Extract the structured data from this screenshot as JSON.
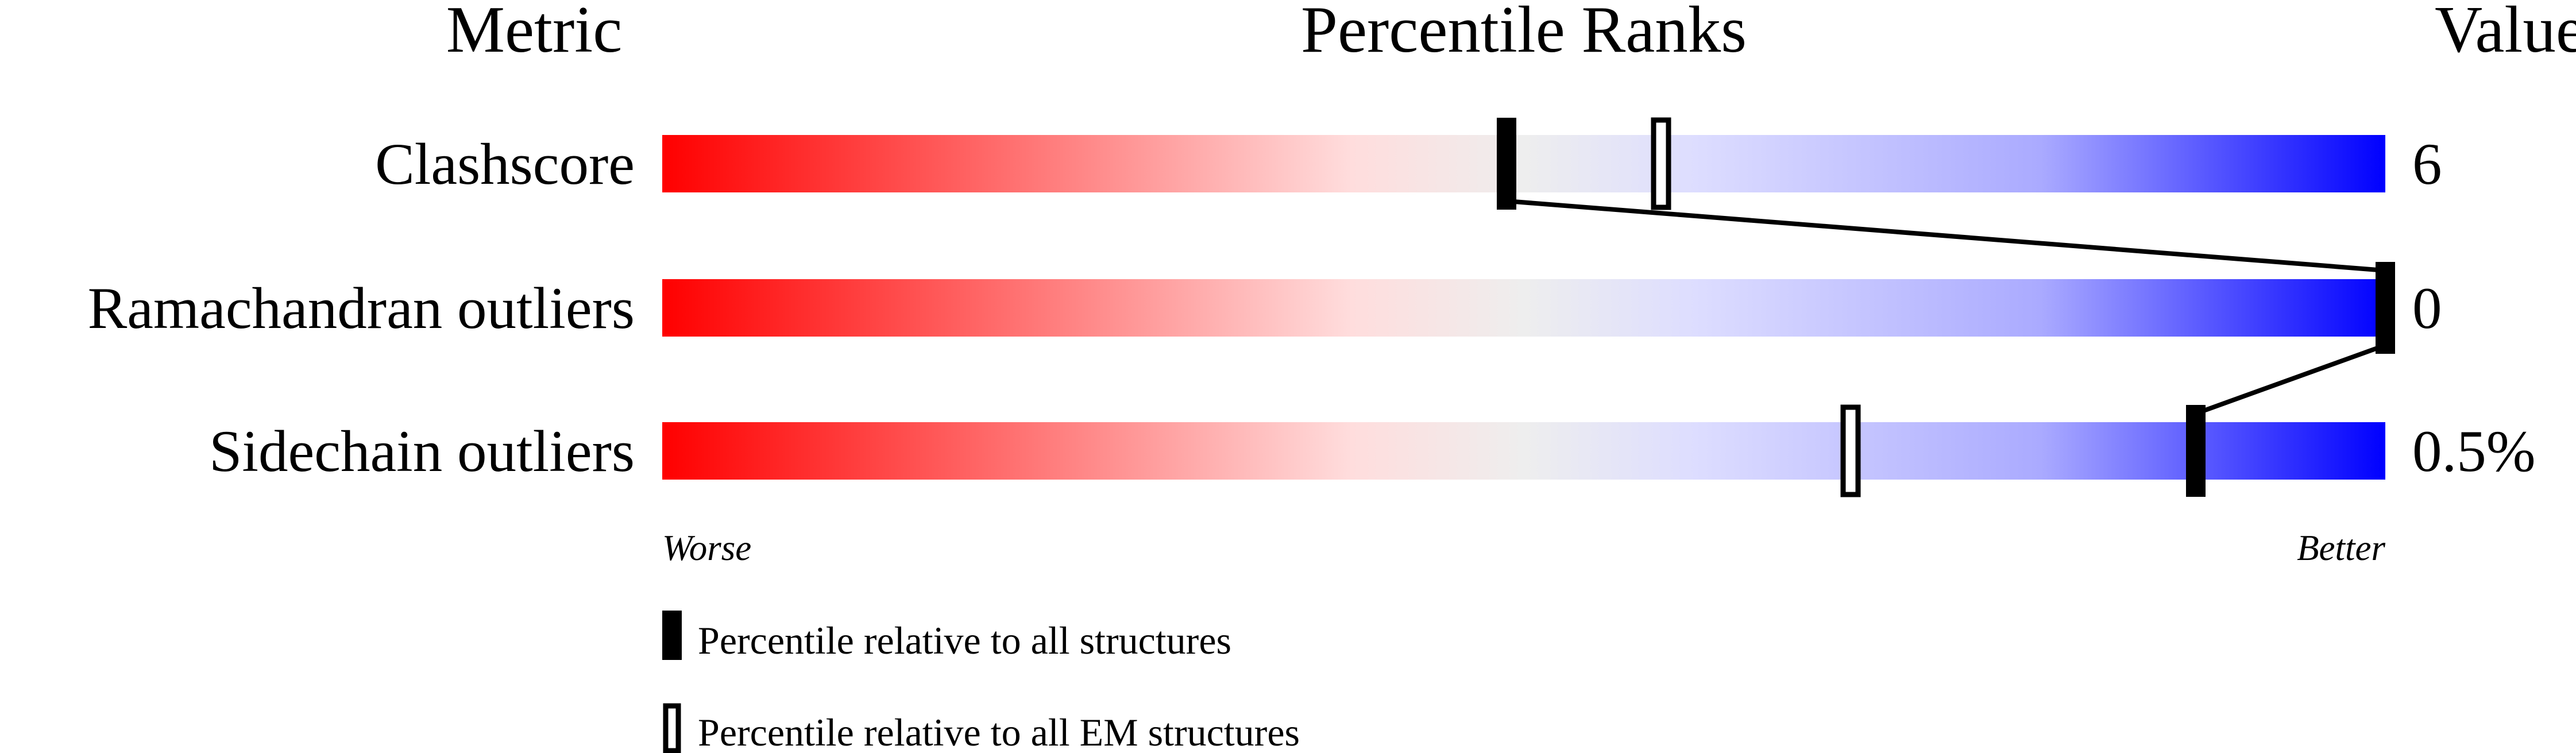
{
  "chart_data": {
    "type": "percentile-rank-slider",
    "headers": {
      "metric": "Metric",
      "ranks": "Percentile Ranks",
      "value": "Value"
    },
    "xlim": [
      0,
      100
    ],
    "axis_labels": {
      "left": "Worse",
      "right": "Better"
    },
    "gradient_colors": [
      "#ff0000",
      "#ffdddd",
      "#eeeeee",
      "#ddddff",
      "#0000ff"
    ],
    "rows": [
      {
        "metric": "Clashscore",
        "value": "6",
        "percentile_all": 49,
        "percentile_em": 58
      },
      {
        "metric": "Ramachandran outliers",
        "value": "0",
        "percentile_all": 100,
        "percentile_em": null
      },
      {
        "metric": "Sidechain outliers",
        "value": "0.5%",
        "percentile_all": 89,
        "percentile_em": 69
      }
    ],
    "legend": [
      {
        "marker": "filled",
        "label": "Percentile relative to all structures"
      },
      {
        "marker": "hollow",
        "label": "Percentile relative to all EM structures"
      }
    ]
  }
}
